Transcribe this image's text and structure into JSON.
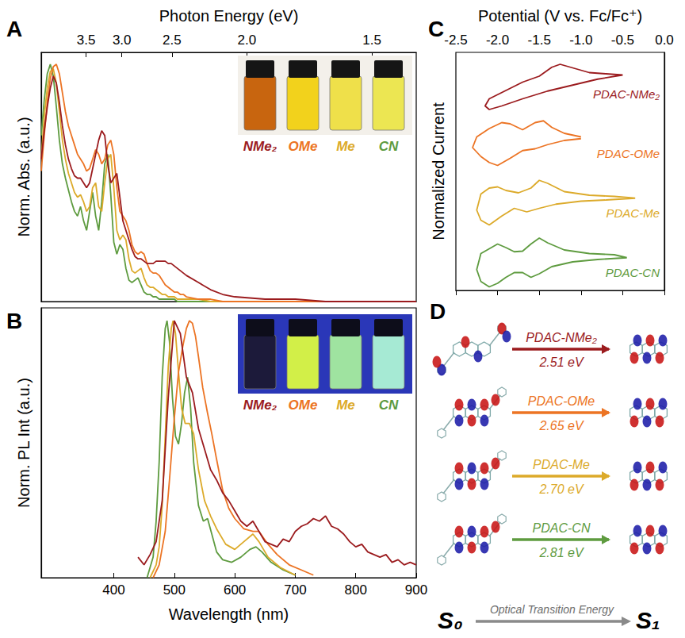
{
  "chart_data": [
    {
      "type": "line",
      "panel": "A",
      "ylabel": "Norm. Abs. (a.u.)",
      "x2label": "Photon Energy (eV)",
      "xlim": [
        280,
        900
      ],
      "ylim": [
        0,
        1.05
      ],
      "x2ticks": [
        {
          "value": 354.3,
          "label": "3.5"
        },
        {
          "value": 413.3,
          "label": "3.0"
        },
        {
          "value": 496,
          "label": "2.5"
        },
        {
          "value": 620,
          "label": "2.0"
        },
        {
          "value": 826.7,
          "label": "1.5"
        }
      ],
      "grid": false,
      "tick_labels": "x",
      "x": [
        280,
        285,
        290,
        295,
        300,
        305,
        310,
        315,
        320,
        325,
        330,
        335,
        340,
        345,
        350,
        355,
        360,
        365,
        370,
        375,
        380,
        385,
        390,
        395,
        400,
        405,
        410,
        415,
        420,
        425,
        430,
        435,
        440,
        445,
        450,
        455,
        460,
        465,
        470,
        475,
        480,
        485,
        490,
        495,
        500,
        505,
        510,
        515,
        520,
        540,
        560,
        580,
        600,
        650,
        700,
        750,
        800,
        850,
        900
      ],
      "series": [
        {
          "name": "NMe₂",
          "color": "#9b1b1e",
          "values": [
            0.6,
            0.72,
            0.82,
            0.9,
            0.95,
            0.92,
            0.84,
            0.74,
            0.66,
            0.6,
            0.56,
            0.53,
            0.52,
            0.52,
            0.5,
            0.48,
            0.5,
            0.56,
            0.62,
            0.68,
            0.72,
            0.7,
            0.58,
            0.5,
            0.52,
            0.54,
            0.44,
            0.34,
            0.3,
            0.26,
            0.22,
            0.19,
            0.18,
            0.18,
            0.17,
            0.16,
            0.16,
            0.16,
            0.17,
            0.17,
            0.17,
            0.17,
            0.16,
            0.16,
            0.15,
            0.14,
            0.13,
            0.12,
            0.11,
            0.08,
            0.05,
            0.03,
            0.02,
            0.01,
            0.01,
            0,
            0,
            0,
            0
          ]
        },
        {
          "name": "OMe",
          "color": "#ec7424",
          "values": [
            0.55,
            0.7,
            0.84,
            0.94,
            0.99,
            1.0,
            0.96,
            0.88,
            0.8,
            0.74,
            0.7,
            0.66,
            0.62,
            0.6,
            0.58,
            0.55,
            0.56,
            0.6,
            0.64,
            0.62,
            0.58,
            0.6,
            0.66,
            0.68,
            0.62,
            0.48,
            0.38,
            0.36,
            0.34,
            0.3,
            0.24,
            0.21,
            0.2,
            0.21,
            0.2,
            0.16,
            0.13,
            0.12,
            0.12,
            0.11,
            0.09,
            0.07,
            0.06,
            0.05,
            0.04,
            0.04,
            0.03,
            0.03,
            0.02,
            0.01,
            0.01,
            0,
            0,
            0,
            0,
            0,
            0,
            0,
            0
          ]
        },
        {
          "name": "Me",
          "color": "#dcaa2a",
          "values": [
            0.6,
            0.78,
            0.9,
            0.97,
            0.98,
            0.92,
            0.8,
            0.68,
            0.6,
            0.54,
            0.5,
            0.46,
            0.44,
            0.45,
            0.42,
            0.38,
            0.4,
            0.48,
            0.5,
            0.4,
            0.38,
            0.5,
            0.6,
            0.62,
            0.48,
            0.3,
            0.26,
            0.28,
            0.26,
            0.18,
            0.13,
            0.12,
            0.13,
            0.14,
            0.1,
            0.07,
            0.06,
            0.06,
            0.05,
            0.04,
            0.03,
            0.03,
            0.02,
            0.02,
            0.02,
            0.01,
            0.01,
            0.01,
            0.01,
            0.01,
            0,
            0,
            0,
            0,
            0,
            0,
            0,
            0,
            0
          ]
        },
        {
          "name": "CN",
          "color": "#5e9b3f",
          "values": [
            0.7,
            0.85,
            0.96,
            1.0,
            0.95,
            0.82,
            0.68,
            0.58,
            0.52,
            0.47,
            0.42,
            0.38,
            0.36,
            0.4,
            0.34,
            0.3,
            0.38,
            0.46,
            0.36,
            0.3,
            0.42,
            0.58,
            0.62,
            0.45,
            0.25,
            0.2,
            0.24,
            0.22,
            0.14,
            0.09,
            0.08,
            0.09,
            0.1,
            0.07,
            0.04,
            0.03,
            0.03,
            0.02,
            0.02,
            0.01,
            0.01,
            0.01,
            0.01,
            0.01,
            0.01,
            0,
            0,
            0,
            0,
            0,
            0,
            0,
            0,
            0,
            0,
            0,
            0,
            0,
            0
          ]
        }
      ]
    },
    {
      "type": "line",
      "panel": "B",
      "xlabel": "Wavelength (nm)",
      "ylabel": "Norm. PL Int (a.u.)",
      "xlim": [
        280,
        900
      ],
      "ylim": [
        0,
        1.05
      ],
      "xticks": [
        400,
        500,
        600,
        700,
        800,
        900
      ],
      "grid": false,
      "tick_labels": "x",
      "series": [
        {
          "name": "NMe₂",
          "color": "#9b1b1e",
          "x": [
            440,
            450,
            460,
            470,
            480,
            490,
            500,
            510,
            520,
            530,
            540,
            550,
            560,
            570,
            580,
            590,
            600,
            610,
            620,
            630,
            640,
            650,
            660,
            670,
            680,
            690,
            700,
            710,
            720,
            730,
            740,
            750,
            760,
            770,
            780,
            790,
            800,
            810,
            820,
            830,
            840,
            850,
            860,
            870,
            880,
            890,
            900
          ],
          "values": [
            0.08,
            0.05,
            0.09,
            0.14,
            0.3,
            0.7,
            1.0,
            0.95,
            0.78,
            0.72,
            0.58,
            0.5,
            0.42,
            0.38,
            0.33,
            0.3,
            0.26,
            0.22,
            0.2,
            0.22,
            0.18,
            0.14,
            0.13,
            0.12,
            0.15,
            0.14,
            0.18,
            0.2,
            0.21,
            0.23,
            0.22,
            0.24,
            0.2,
            0.19,
            0.17,
            0.14,
            0.12,
            0.13,
            0.1,
            0.09,
            0.08,
            0.09,
            0.06,
            0.07,
            0.05,
            0.06,
            0.05
          ]
        },
        {
          "name": "OMe",
          "color": "#ec7424",
          "x": [
            465,
            475,
            485,
            492,
            500,
            507,
            514,
            520,
            525,
            530,
            535,
            540,
            547,
            555,
            562,
            570,
            580,
            590,
            600,
            615,
            630,
            640,
            655,
            670,
            690,
            710,
            730
          ],
          "values": [
            0,
            0.05,
            0.18,
            0.38,
            0.62,
            0.8,
            0.9,
            0.97,
            1.0,
            0.99,
            0.94,
            0.86,
            0.74,
            0.64,
            0.56,
            0.46,
            0.34,
            0.27,
            0.23,
            0.19,
            0.18,
            0.18,
            0.13,
            0.09,
            0.05,
            0.03,
            0.01
          ]
        },
        {
          "name": "Me",
          "color": "#dcaa2a",
          "x": [
            460,
            470,
            475,
            480,
            485,
            490,
            495,
            498,
            502,
            507,
            512,
            518,
            525,
            532,
            540,
            550,
            560,
            570,
            585,
            600,
            615,
            630,
            640,
            655,
            675,
            700
          ],
          "values": [
            0,
            0.05,
            0.12,
            0.28,
            0.55,
            0.82,
            0.97,
            1.0,
            0.95,
            0.8,
            0.66,
            0.6,
            0.6,
            0.56,
            0.42,
            0.3,
            0.24,
            0.19,
            0.13,
            0.11,
            0.14,
            0.17,
            0.14,
            0.08,
            0.04,
            0.01
          ]
        },
        {
          "name": "CN",
          "color": "#5e9b3f",
          "x": [
            455,
            465,
            470,
            475,
            480,
            485,
            488,
            492,
            497,
            502,
            507,
            512,
            517,
            522,
            527,
            532,
            540,
            548,
            555,
            562,
            570,
            580,
            595,
            610,
            625,
            635,
            645,
            660,
            680,
            700
          ],
          "values": [
            0,
            0.08,
            0.22,
            0.45,
            0.78,
            0.97,
            1.0,
            0.92,
            0.7,
            0.55,
            0.52,
            0.6,
            0.72,
            0.78,
            0.66,
            0.45,
            0.28,
            0.22,
            0.23,
            0.17,
            0.1,
            0.07,
            0.06,
            0.08,
            0.11,
            0.12,
            0.1,
            0.06,
            0.03,
            0.01
          ]
        }
      ]
    },
    {
      "type": "line",
      "panel": "C",
      "xlabel": "Potential (V vs. Fc/Fc⁺)",
      "ylabel": "Normalized Current",
      "xlim": [
        -2.5,
        0.0
      ],
      "ylim": [
        0,
        4
      ],
      "xticks": [
        -2.5,
        {
          "value": -2,
          "label": "-2.0"
        },
        -1.5,
        {
          "value": -1,
          "label": "-1.0"
        },
        -0.5,
        {
          "value": 0,
          "label": "0.0"
        }
      ],
      "grid": false,
      "tick_labels": "x",
      "series": [
        {
          "name": "PDAC-NMe₂",
          "color": "#9b1b1e",
          "x": [
            -0.5,
            -0.8,
            -1.1,
            -1.4,
            -1.7,
            -1.95,
            -2.1,
            -2.15,
            -2.1,
            -1.9,
            -1.7,
            -1.5,
            -1.35,
            -1.25,
            -1.1,
            -0.9,
            -0.7,
            -0.5
          ],
          "values": [
            3.62,
            3.55,
            3.45,
            3.35,
            3.22,
            3.1,
            3.04,
            3.1,
            3.22,
            3.36,
            3.5,
            3.6,
            3.75,
            3.8,
            3.74,
            3.66,
            3.64,
            3.62
          ]
        },
        {
          "name": "PDAC-OMe",
          "color": "#ec7424",
          "x": [
            -1.0,
            -1.2,
            -1.4,
            -1.55,
            -1.7,
            -1.85,
            -2.0,
            -2.1,
            -2.2,
            -2.3,
            -2.25,
            -2.1,
            -1.95,
            -1.85,
            -1.7,
            -1.55,
            -1.45,
            -1.35,
            -1.2,
            -1.0
          ],
          "values": [
            2.55,
            2.52,
            2.45,
            2.38,
            2.35,
            2.22,
            2.1,
            2.15,
            2.25,
            2.4,
            2.58,
            2.72,
            2.82,
            2.8,
            2.7,
            2.82,
            2.85,
            2.74,
            2.64,
            2.58
          ]
        },
        {
          "name": "PDAC-Me",
          "color": "#dcaa2a",
          "x": [
            -0.35,
            -0.7,
            -1.0,
            -1.3,
            -1.5,
            -1.65,
            -1.8,
            -1.95,
            -2.1,
            -2.2,
            -2.25,
            -2.2,
            -2.1,
            -2.0,
            -1.9,
            -1.75,
            -1.6,
            -1.5,
            -1.4,
            -1.2,
            -0.9,
            -0.6,
            -0.35
          ],
          "values": [
            1.55,
            1.52,
            1.5,
            1.45,
            1.38,
            1.32,
            1.38,
            1.25,
            1.1,
            1.18,
            1.35,
            1.62,
            1.72,
            1.74,
            1.68,
            1.64,
            1.72,
            1.85,
            1.8,
            1.66,
            1.6,
            1.58,
            1.55
          ]
        },
        {
          "name": "PDAC-CN",
          "color": "#5e9b3f",
          "x": [
            -0.45,
            -0.8,
            -1.1,
            -1.35,
            -1.5,
            -1.6,
            -1.7,
            -1.8,
            -1.9,
            -2.0,
            -2.1,
            -2.2,
            -2.25,
            -2.2,
            -2.1,
            -2.0,
            -1.9,
            -1.8,
            -1.7,
            -1.6,
            -1.5,
            -1.4,
            -1.2,
            -0.9,
            -0.6,
            -0.45
          ],
          "values": [
            0.55,
            0.52,
            0.48,
            0.4,
            0.28,
            0.22,
            0.3,
            0.3,
            0.22,
            0.12,
            0.06,
            0.15,
            0.35,
            0.62,
            0.7,
            0.78,
            0.72,
            0.65,
            0.66,
            0.78,
            0.88,
            0.8,
            0.68,
            0.62,
            0.6,
            0.55
          ]
        }
      ]
    }
  ],
  "diagram": {
    "panel": "D",
    "rows": [
      {
        "name": "PDAC-NMe₂",
        "energy": "2.51 eV",
        "color": "#9b1b1e"
      },
      {
        "name": "PDAC-OMe",
        "energy": "2.65 eV",
        "color": "#ec7424"
      },
      {
        "name": "PDAC-Me",
        "energy": "2.70 eV",
        "color": "#dcaa2a"
      },
      {
        "name": "PDAC-CN",
        "energy": "2.81 eV",
        "color": "#5e9b3f"
      }
    ],
    "start_state": "S₀",
    "end_state": "S₁",
    "axis_label": "Optical Transition Energy"
  }
}
